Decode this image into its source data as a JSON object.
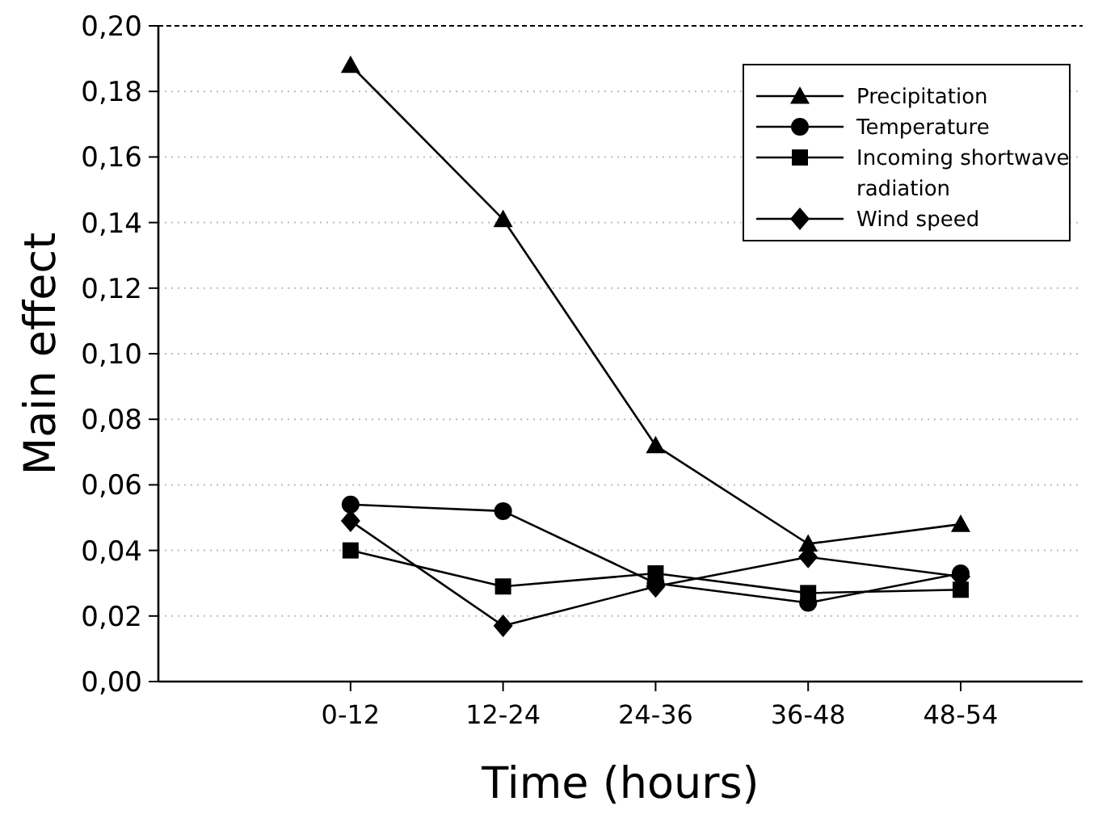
{
  "chart_data": {
    "type": "line",
    "xlabel": "Time (hours)",
    "ylabel": "Main effect",
    "categories": [
      "0-12",
      "12-24",
      "24-36",
      "36-48",
      "48-54"
    ],
    "series": [
      {
        "name": "Precipitation",
        "color": "#000000",
        "marker": "triangle",
        "values": [
          0.188,
          0.141,
          0.072,
          0.042,
          0.048
        ]
      },
      {
        "name": "Temperature",
        "color": "#000000",
        "marker": "circle",
        "values": [
          0.054,
          0.052,
          0.03,
          0.024,
          0.033
        ]
      },
      {
        "name": "Incoming shortwave radiation",
        "color": "#000000",
        "marker": "square",
        "values": [
          0.04,
          0.029,
          0.033,
          0.027,
          0.028
        ]
      },
      {
        "name": "Wind speed",
        "color": "#000000",
        "marker": "diamond",
        "values": [
          0.049,
          0.017,
          0.029,
          0.038,
          0.032
        ]
      }
    ],
    "ylim": [
      0,
      0.2
    ],
    "yticks": [
      {
        "value": 0,
        "label": "0,00"
      },
      {
        "value": 0.02,
        "label": "0,02"
      },
      {
        "value": 0.04,
        "label": "0,04"
      },
      {
        "value": 0.06,
        "label": "0,06"
      },
      {
        "value": 0.08,
        "label": "0,08"
      },
      {
        "value": 0.1,
        "label": "0,10"
      },
      {
        "value": 0.12,
        "label": "0,12"
      },
      {
        "value": 0.14,
        "label": "0,14"
      },
      {
        "value": 0.16,
        "label": "0,16"
      },
      {
        "value": 0.18,
        "label": "0,18"
      },
      {
        "value": 0.2,
        "label": "0,20"
      }
    ],
    "grid": "y",
    "legend": "top right"
  }
}
